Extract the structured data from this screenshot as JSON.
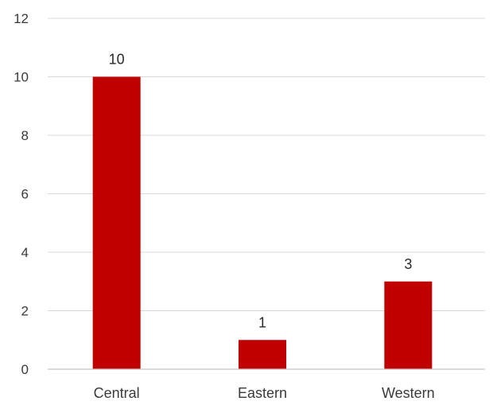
{
  "chart_data": {
    "type": "bar",
    "categories": [
      "Central",
      "Eastern",
      "Western"
    ],
    "values": [
      10,
      1,
      3
    ],
    "data_labels": [
      "10",
      "1",
      "3"
    ],
    "y_ticks": [
      "0",
      "2",
      "4",
      "6",
      "8",
      "10",
      "12"
    ],
    "ylim": [
      0,
      12
    ],
    "bar_color": "#c00000",
    "grid": true,
    "legend": "none",
    "title": "",
    "xlabel": "",
    "ylabel": ""
  }
}
